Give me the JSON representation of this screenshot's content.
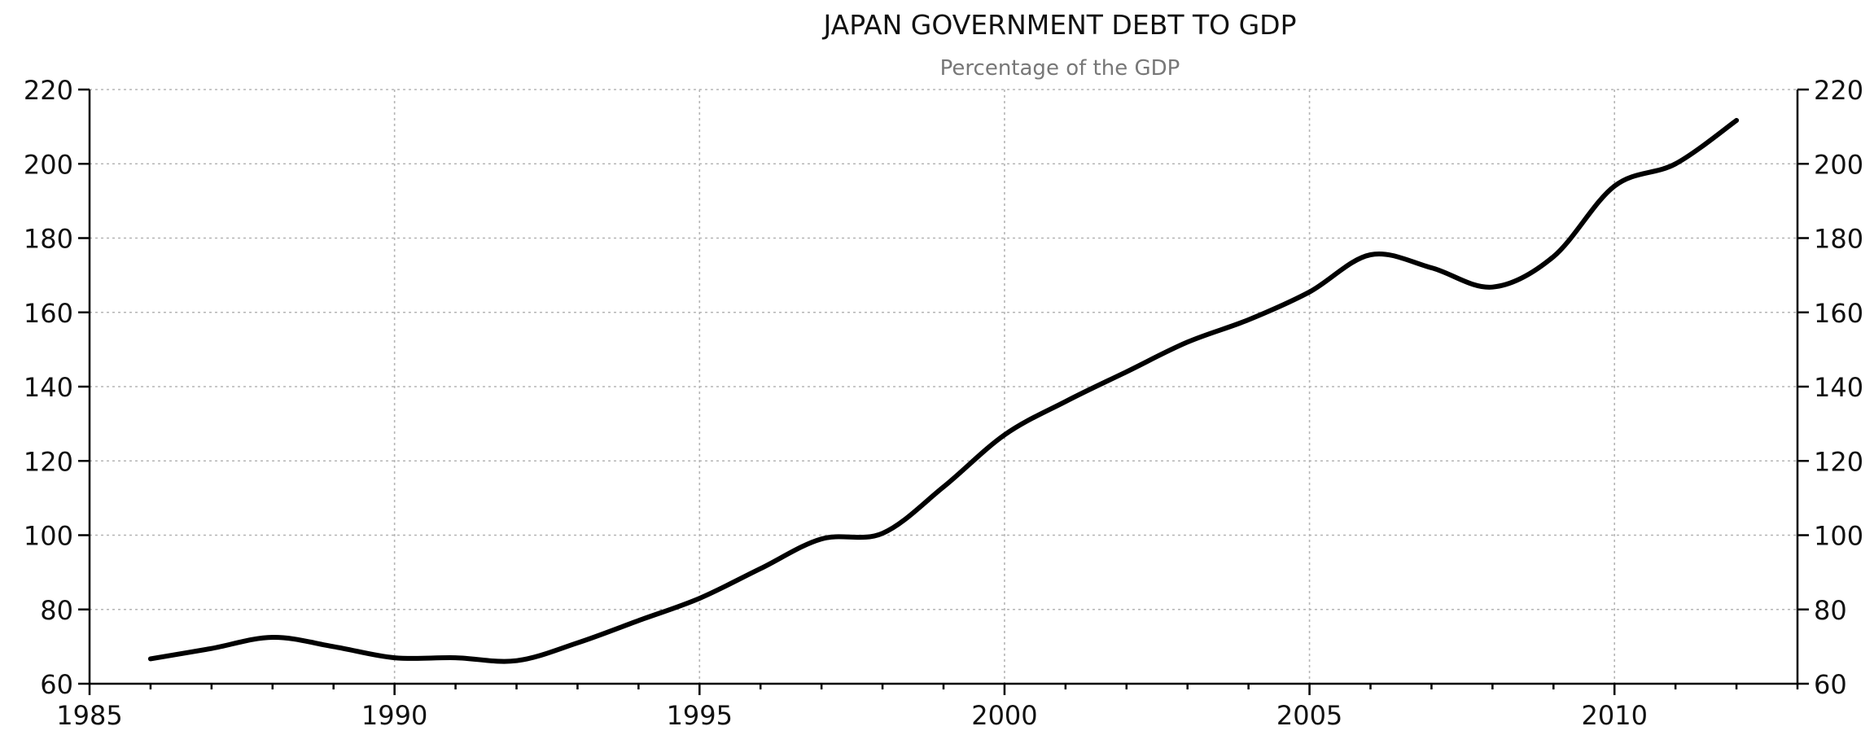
{
  "chart_data": {
    "type": "line",
    "title": "JAPAN GOVERNMENT DEBT TO GDP",
    "subtitle": "Percentage of the GDP",
    "xlabel": "",
    "ylabel": "",
    "xlim": [
      1985,
      2013
    ],
    "ylim": [
      60,
      220
    ],
    "x_ticks": [
      "1985",
      "1990",
      "1995",
      "2000",
      "2005",
      "2010"
    ],
    "y_ticks": [
      "60",
      "80",
      "100",
      "120",
      "140",
      "160",
      "180",
      "200",
      "220"
    ],
    "grid": true,
    "series": [
      {
        "color": "#000000",
        "x": [
          1986,
          1987,
          1988,
          1989,
          1990,
          1991,
          1992,
          1993,
          1994,
          1995,
          1996,
          1997,
          1998,
          1999,
          2000,
          2001,
          2002,
          2003,
          2004,
          2005,
          2006,
          2007,
          2008,
          2009,
          2010,
          2011,
          2012
        ],
        "values": [
          66.7,
          69.5,
          72.5,
          70.0,
          67.0,
          67.0,
          66.2,
          71.0,
          77.0,
          83.0,
          91.0,
          99.0,
          100.5,
          113.0,
          127.0,
          136.0,
          144.0,
          152.0,
          158.0,
          165.5,
          175.5,
          172.0,
          166.8,
          175.0,
          194.0,
          200.0,
          211.7
        ]
      }
    ]
  }
}
